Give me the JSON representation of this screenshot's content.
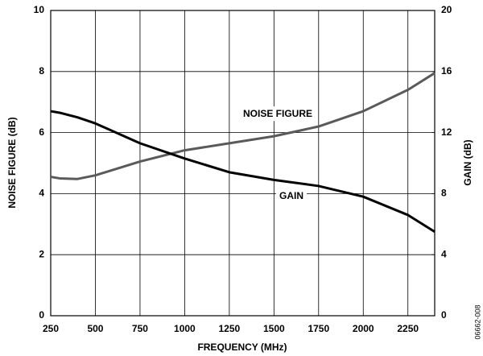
{
  "chart_data": {
    "type": "line",
    "x_label": "FREQUENCY (MHz)",
    "y_label": "NOISE FIGURE (dB)",
    "y2_label": "GAIN (dB)",
    "figure_id": "06662-008",
    "x": [
      250,
      300,
      400,
      500,
      750,
      1000,
      1250,
      1500,
      1750,
      2000,
      2250,
      2400
    ],
    "series": [
      {
        "name": "NOISE FIGURE",
        "color": "#5a5a5a",
        "axis": "y",
        "values": [
          4.55,
          4.5,
          4.48,
          4.6,
          5.05,
          5.42,
          5.65,
          5.88,
          6.2,
          6.7,
          7.4,
          7.95
        ]
      },
      {
        "name": "GAIN",
        "color": "#000000",
        "axis": "y2",
        "values": [
          13.4,
          13.3,
          13.0,
          12.6,
          11.3,
          10.3,
          9.4,
          8.9,
          8.5,
          7.8,
          6.6,
          5.5
        ]
      }
    ],
    "xlim": [
      250,
      2400
    ],
    "xticks": [
      250,
      500,
      750,
      1000,
      1250,
      1500,
      1750,
      2000,
      2250
    ],
    "ylim": [
      0,
      10
    ],
    "yticks": [
      0,
      2,
      4,
      6,
      8,
      10
    ],
    "y2lim": [
      0,
      20
    ],
    "y2ticks": [
      0,
      4,
      8,
      12,
      16,
      20
    ],
    "grid": true
  }
}
